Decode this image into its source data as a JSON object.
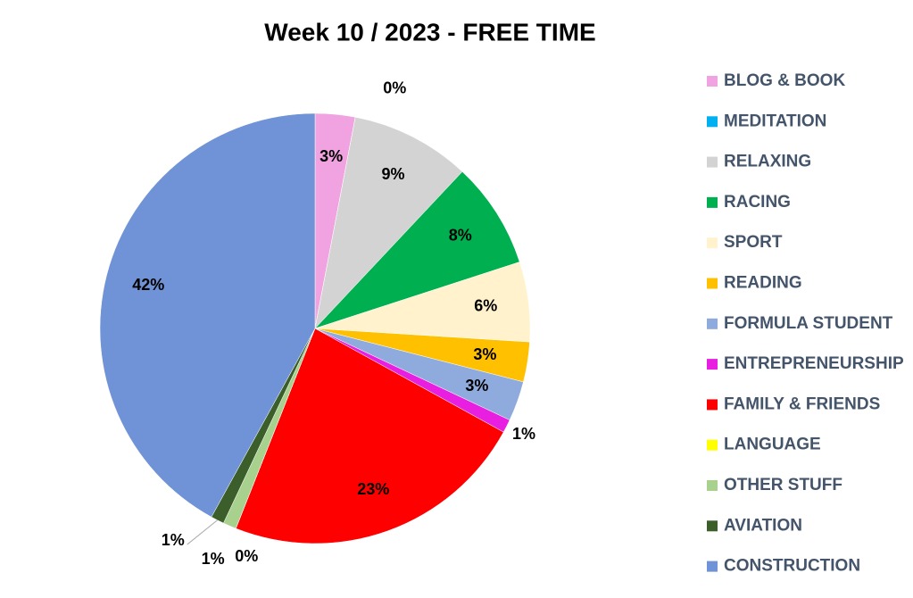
{
  "chart_data": {
    "type": "pie",
    "title": "Week 10 / 2023 - FREE TIME",
    "categories": [
      "BLOG & BOOK",
      "MEDITATION",
      "RELAXING",
      "RACING",
      "SPORT",
      "READING",
      "FORMULA STUDENT",
      "ENTREPRENEURSHIP",
      "FAMILY & FRIENDS",
      "LANGUAGE",
      "OTHER STUFF",
      "AVIATION",
      "CONSTRUCTION"
    ],
    "values": [
      3,
      0,
      9,
      8,
      6,
      3,
      3,
      1,
      23,
      0,
      1,
      1,
      42
    ],
    "value_labels": [
      "3%",
      "0%",
      "9%",
      "8%",
      "6%",
      "3%",
      "3%",
      "1%",
      "23%",
      "0%",
      "1%",
      "1%",
      "42%"
    ],
    "colors": [
      "#f1a2e0",
      "#00b0f0",
      "#d3d3d3",
      "#00b050",
      "#fff2cc",
      "#ffc000",
      "#8faadc",
      "#e81ee0",
      "#ff0000",
      "#ffff00",
      "#a9d18e",
      "#3b5e2b",
      "#6f93d6"
    ],
    "legend": "right"
  }
}
